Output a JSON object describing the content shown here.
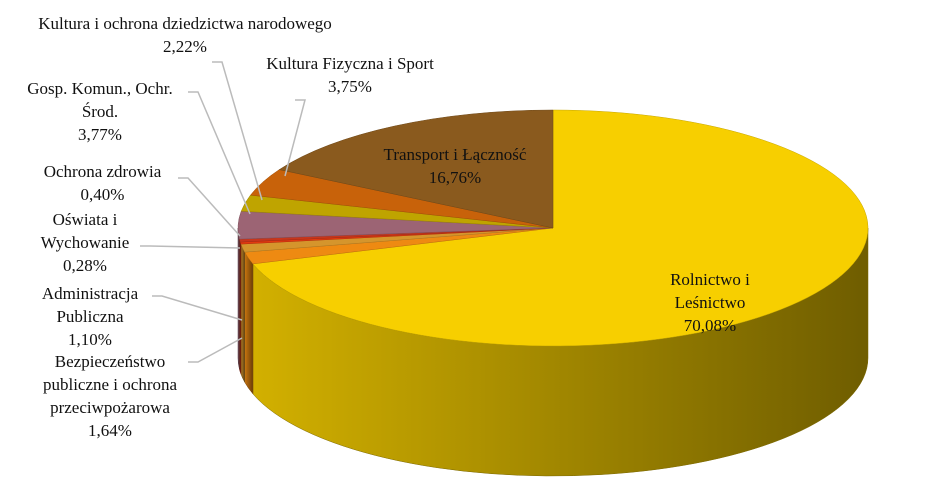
{
  "chart_data": {
    "type": "pie3d",
    "categories": [
      "Rolnictwo i Leśnictwo",
      "Bezpieczeństwo publiczne i ochrona przeciwpożarowa",
      "Administracja Publiczna",
      "Oświata i Wychowanie",
      "Ochrona zdrowia",
      "Gosp. Komun., Ochr. Środ.",
      "Kultura i ochrona dziedzictwa narodowego",
      "Kultura Fizyczna i Sport",
      "Transport i Łączność"
    ],
    "values": [
      70.08,
      1.64,
      1.1,
      0.28,
      0.4,
      3.77,
      2.22,
      3.75,
      16.76
    ],
    "value_labels": [
      "70,08%",
      "1,64%",
      "1,10%",
      "0,28%",
      "0,40%",
      "3,77%",
      "2,22%",
      "3,75%",
      "16,76%"
    ],
    "colors": [
      "#f7cf00",
      "#ee8a12",
      "#d5952c",
      "#e23a10",
      "#c8361c",
      "#9c6474",
      "#bfa400",
      "#c8620a",
      "#8a5a1e"
    ]
  }
}
